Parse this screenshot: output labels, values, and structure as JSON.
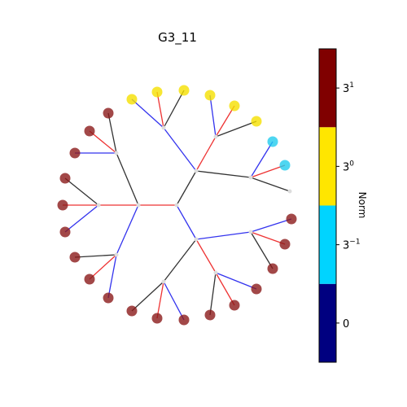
{
  "figure": {
    "title": "G3_11"
  },
  "colorbar": {
    "label": "Norm",
    "bands": [
      {
        "color": "#000080"
      },
      {
        "color": "#00d4ff"
      },
      {
        "color": "#ffe600"
      },
      {
        "color": "#800000"
      }
    ],
    "ticks": [
      {
        "base": "0",
        "exp": ""
      },
      {
        "base": "3",
        "exp": "−1"
      },
      {
        "base": "3",
        "exp": "0"
      },
      {
        "base": "3",
        "exp": "1"
      }
    ]
  },
  "tree": {
    "edge_colors": {
      "black": "#333333",
      "red": "#ee3333",
      "blue": "#3333ee"
    },
    "internal_node_color": "#dddddd",
    "leaf_colors": {
      "dark_red": "#8b1a1a",
      "yellow": "#f5e000",
      "cyan": "#22ccee"
    }
  }
}
